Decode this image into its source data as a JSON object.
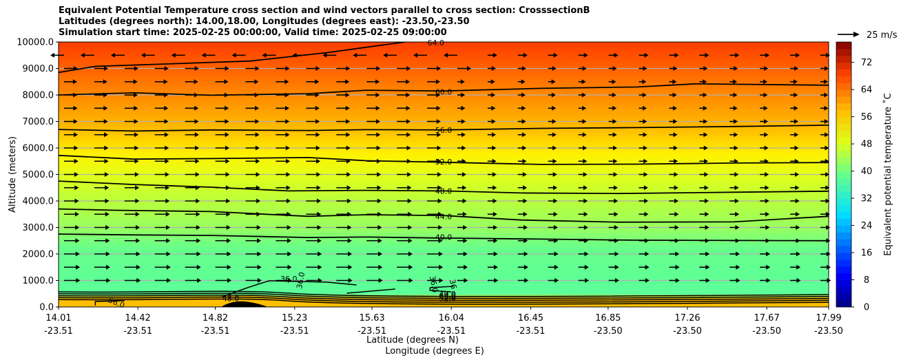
{
  "chart_data": {
    "type": "contour",
    "title_lines": [
      "Equivalent Potential Temperature cross section and wind vectors parallel to cross section: CrosssectionB",
      "Latitudes (degrees north): 14.00,18.00, Longitudes (degrees east): -23.50,-23.50",
      "Simulation start time: 2025-02-25 00:00:00, Valid time: 2025-02-25 09:00:00"
    ],
    "ylabel": "Altitude (meters)",
    "xlabel_lat": "Latitude (degrees N)",
    "xlabel_lon": "Longitude (degrees E)",
    "ylim": [
      0,
      10000
    ],
    "yticks": [
      "0.0",
      "1000.0",
      "2000.0",
      "3000.0",
      "4000.0",
      "5000.0",
      "6000.0",
      "7000.0",
      "8000.0",
      "9000.0",
      "10000.0"
    ],
    "xticks": [
      {
        "lat": "14.01",
        "lon": "-23.51"
      },
      {
        "lat": "14.42",
        "lon": "-23.51"
      },
      {
        "lat": "14.82",
        "lon": "-23.51"
      },
      {
        "lat": "15.23",
        "lon": "-23.51"
      },
      {
        "lat": "15.63",
        "lon": "-23.51"
      },
      {
        "lat": "16.04",
        "lon": "-23.51"
      },
      {
        "lat": "16.45",
        "lon": "-23.51"
      },
      {
        "lat": "16.85",
        "lon": "-23.50"
      },
      {
        "lat": "17.26",
        "lon": "-23.50"
      },
      {
        "lat": "17.67",
        "lon": "-23.50"
      },
      {
        "lat": "17.99",
        "lon": "-23.50"
      }
    ],
    "colorbar": {
      "label": "Equivalent potential temperature $^\\circ$C",
      "ticks": [
        "0",
        "8",
        "16",
        "24",
        "32",
        "40",
        "48",
        "56",
        "64",
        "72"
      ],
      "range": [
        0,
        78
      ]
    },
    "quiver_key": "25 m/s",
    "contour_labels": [
      "64.0",
      "60.0",
      "56.0",
      "52.0",
      "48.0",
      "44.0",
      "40.0",
      "36.0",
      "36.0",
      "36.0",
      "36",
      "40.0",
      "44.0",
      "48.0",
      "52.0",
      "56.0",
      "48.0"
    ],
    "contours": [
      {
        "level": 40,
        "x": [
          14.01,
          14.4,
          14.8,
          15.3,
          15.6,
          16.0,
          16.5,
          17.0,
          17.5,
          17.99
        ],
        "y": [
          2750,
          2720,
          2700,
          2620,
          2640,
          2600,
          2560,
          2520,
          2510,
          2500
        ]
      },
      {
        "level": 44,
        "x": [
          14.01,
          14.3,
          14.8,
          15.3,
          15.6,
          16.0,
          16.4,
          16.9,
          17.5,
          17.99
        ],
        "y": [
          3700,
          3650,
          3600,
          3420,
          3480,
          3450,
          3280,
          3200,
          3210,
          3420
        ]
      },
      {
        "level": 48,
        "x": [
          14.01,
          14.4,
          14.8,
          15.2,
          15.6,
          16.0,
          16.4,
          16.9,
          17.5,
          17.99
        ],
        "y": [
          4750,
          4620,
          4520,
          4380,
          4400,
          4380,
          4300,
          4280,
          4330,
          4370
        ]
      },
      {
        "level": 52,
        "x": [
          14.01,
          14.4,
          14.8,
          15.3,
          15.6,
          16.0,
          16.5,
          17.0,
          17.5,
          17.99
        ],
        "y": [
          5720,
          5580,
          5600,
          5640,
          5520,
          5460,
          5380,
          5390,
          5430,
          5450
        ]
      },
      {
        "level": 56,
        "x": [
          14.01,
          14.4,
          14.8,
          15.3,
          15.6,
          16.0,
          16.5,
          17.0,
          17.5,
          17.99
        ],
        "y": [
          6700,
          6640,
          6680,
          6660,
          6690,
          6680,
          6740,
          6770,
          6810,
          6860
        ]
      },
      {
        "level": 60,
        "x": [
          14.01,
          14.4,
          14.8,
          15.3,
          15.6,
          16.0,
          16.5,
          17.0,
          17.3,
          17.99
        ],
        "y": [
          8000,
          8080,
          7990,
          8050,
          8180,
          8150,
          8250,
          8300,
          8420,
          8370
        ]
      },
      {
        "level": 64,
        "x": [
          14.01,
          14.2,
          14.6,
          15.0,
          15.4,
          15.7,
          15.8
        ],
        "y": [
          8850,
          9080,
          9180,
          9280,
          9600,
          9900,
          10000
        ]
      }
    ]
  }
}
